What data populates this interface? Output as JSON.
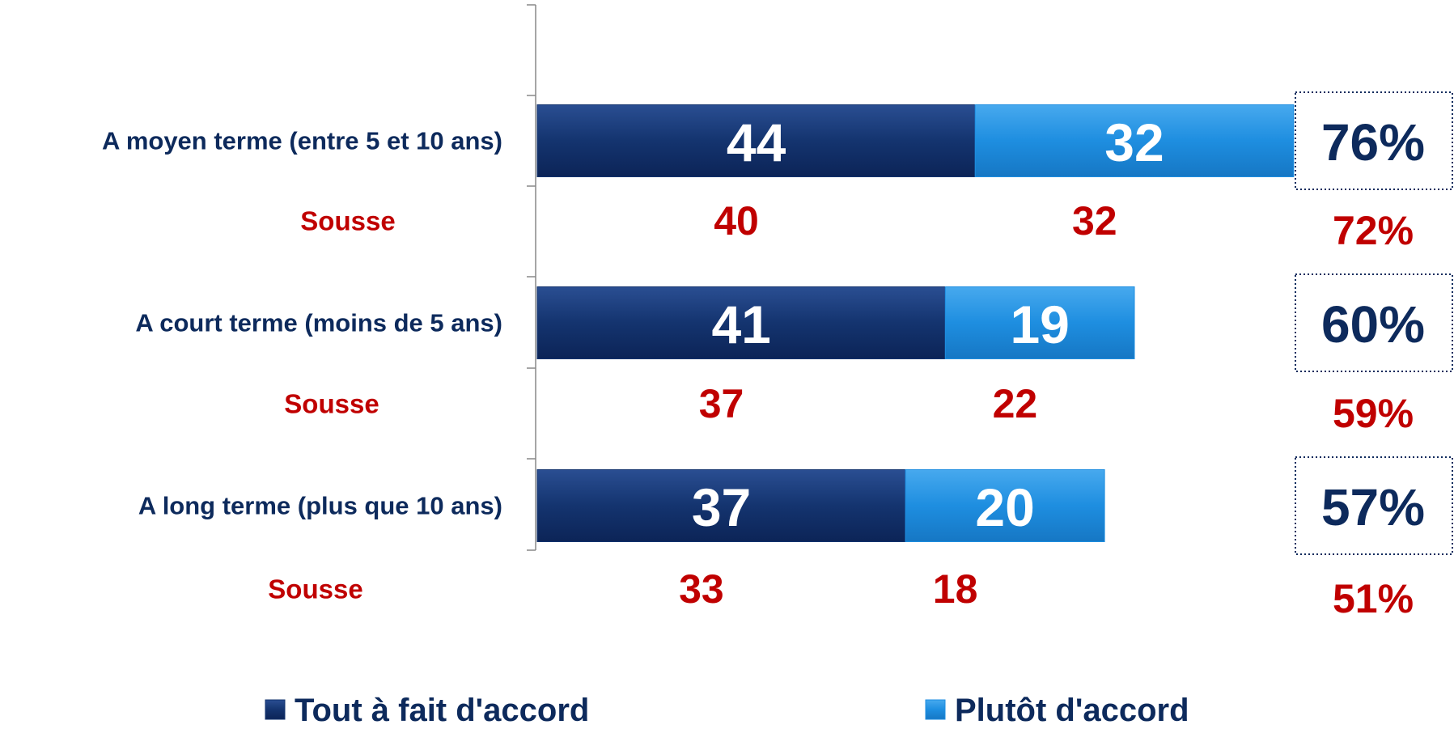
{
  "chart_data": {
    "type": "bar",
    "orientation": "horizontal",
    "stacked": true,
    "categories": [
      "A moyen terme (entre 5 et 10 ans)",
      "A court terme (moins de 5 ans)",
      "A long terme (plus que 10 ans)"
    ],
    "series": [
      {
        "name": "Tout à fait d'accord",
        "color": "#14346f",
        "values": [
          44,
          41,
          37
        ]
      },
      {
        "name": "Plutôt d'accord",
        "color": "#1e8ee0",
        "values": [
          32,
          19,
          20
        ]
      }
    ],
    "totals": {
      "values": [
        76,
        60,
        57
      ],
      "value_labels": [
        "76%",
        "60%",
        "57%"
      ]
    },
    "comparison": {
      "label": "Sousse",
      "color": "#c00000",
      "series": [
        {
          "values": [
            40,
            37,
            33
          ]
        },
        {
          "values": [
            32,
            22,
            18
          ]
        }
      ],
      "totals": {
        "values": [
          72,
          59,
          51
        ],
        "value_labels": [
          "72%",
          "59%",
          "51%"
        ]
      }
    }
  }
}
